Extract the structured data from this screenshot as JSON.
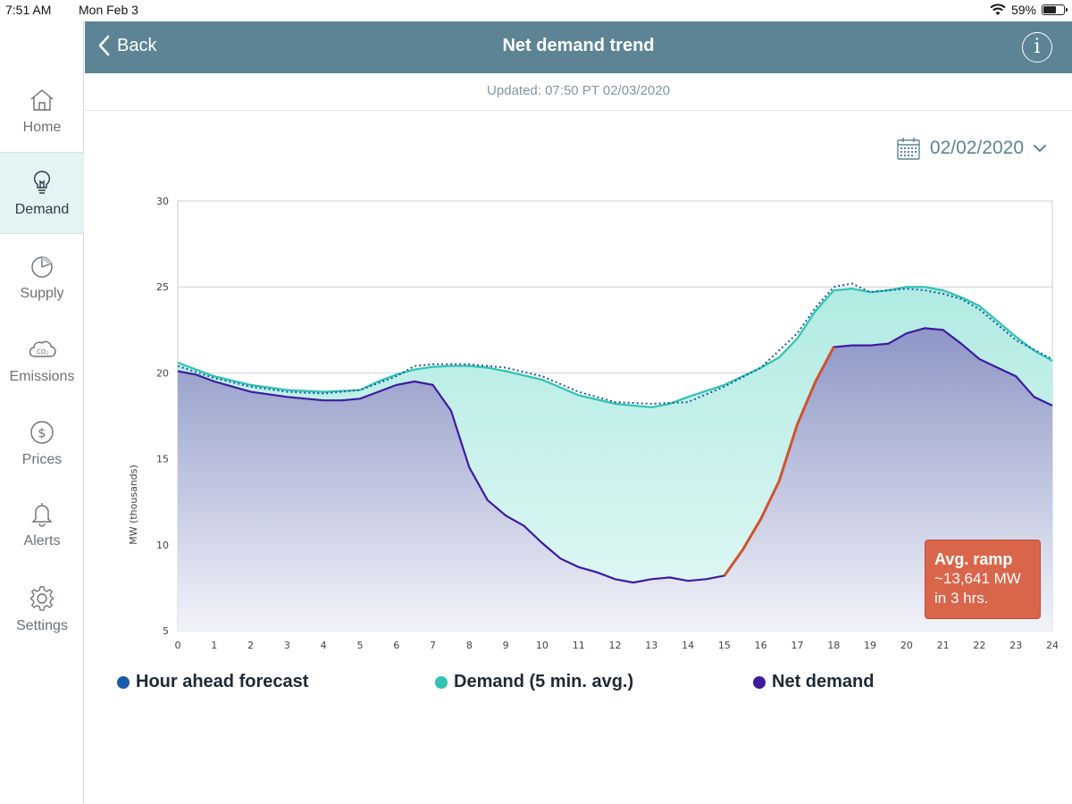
{
  "status": {
    "time": "7:51 AM",
    "date": "Mon Feb 3",
    "battery": "59%"
  },
  "sidebar": {
    "items": [
      {
        "label": "Home",
        "icon": "home-icon"
      },
      {
        "label": "Demand",
        "icon": "lightbulb-icon",
        "active": true
      },
      {
        "label": "Supply",
        "icon": "pie-chart-icon"
      },
      {
        "label": "Emissions",
        "icon": "co2-cloud-icon"
      },
      {
        "label": "Prices",
        "icon": "dollar-icon"
      },
      {
        "label": "Alerts",
        "icon": "bell-icon"
      },
      {
        "label": "Settings",
        "icon": "gear-icon"
      }
    ]
  },
  "header": {
    "back_label": "Back",
    "title": "Net demand trend",
    "info_label": "i"
  },
  "updated_text": "Updated: 07:50 PT 02/03/2020",
  "date_selector": {
    "value": "02/02/2020"
  },
  "colors": {
    "header": "#5c8494",
    "forecast": "#1a5aa8",
    "demand": "#2ec4b0",
    "net_demand": "#3e1aa0",
    "ramp": "#d0522e",
    "ramp_box": "#d9664a"
  },
  "ramp_annotation": {
    "title": "Avg. ramp",
    "value": "~13,641 MW",
    "duration": "in 3 hrs."
  },
  "chart_data": {
    "type": "area",
    "title": "Net demand trend",
    "xlabel": "",
    "ylabel": "MW (thousands)",
    "xlim": [
      0,
      24
    ],
    "ylim": [
      5,
      30
    ],
    "x_ticks": [
      0,
      1,
      2,
      3,
      4,
      5,
      6,
      7,
      8,
      9,
      10,
      11,
      12,
      13,
      14,
      15,
      16,
      17,
      18,
      19,
      20,
      21,
      22,
      23,
      24
    ],
    "y_ticks": [
      5,
      10,
      15,
      20,
      25,
      30
    ],
    "grid": true,
    "series": [
      {
        "name": "Demand (5 min. avg.)",
        "x": [
          0,
          0.5,
          1,
          2,
          3,
          4,
          5,
          5.5,
          6,
          6.5,
          7,
          7.5,
          8,
          8.5,
          9,
          10,
          11,
          12,
          12.5,
          13,
          13.5,
          14,
          15,
          16,
          16.5,
          17,
          17.5,
          18,
          18.5,
          19,
          19.5,
          20,
          20.5,
          21,
          21.5,
          22,
          22.5,
          23,
          23.5,
          24
        ],
        "values": [
          20.6,
          20.2,
          19.8,
          19.3,
          19.0,
          18.9,
          19.0,
          19.5,
          19.9,
          20.2,
          20.35,
          20.4,
          20.4,
          20.3,
          20.1,
          19.6,
          18.7,
          18.2,
          18.1,
          18.0,
          18.2,
          18.6,
          19.3,
          20.3,
          20.9,
          22.0,
          23.6,
          24.8,
          24.9,
          24.7,
          24.8,
          25.0,
          25.0,
          24.8,
          24.4,
          23.9,
          23.0,
          22.1,
          21.3,
          20.7
        ]
      },
      {
        "name": "Hour ahead forecast",
        "x": [
          0,
          1,
          2,
          3,
          4,
          5,
          6,
          6.5,
          7,
          8,
          9,
          10,
          11,
          12,
          13,
          14,
          15,
          16,
          17,
          17.5,
          18,
          18.5,
          19,
          19.5,
          20,
          20.5,
          21,
          21.5,
          22,
          23,
          24
        ],
        "values": [
          20.4,
          19.7,
          19.2,
          18.9,
          18.8,
          19.0,
          19.8,
          20.4,
          20.5,
          20.5,
          20.3,
          19.8,
          18.9,
          18.3,
          18.2,
          18.3,
          19.2,
          20.3,
          22.3,
          23.8,
          25.0,
          25.2,
          24.7,
          24.8,
          24.9,
          24.8,
          24.6,
          24.3,
          23.7,
          21.9,
          20.8
        ]
      },
      {
        "name": "Net demand",
        "x": [
          0,
          0.5,
          1,
          2,
          3,
          4,
          4.5,
          5,
          5.5,
          6,
          6.5,
          7,
          7.5,
          8,
          8.5,
          9,
          9.5,
          10,
          10.5,
          11,
          11.5,
          12,
          12.5,
          13,
          13.5,
          14,
          14.5,
          15,
          15.5,
          16,
          16.5,
          17,
          17.5,
          18,
          18.5,
          19,
          19.5,
          20,
          20.5,
          21,
          21.5,
          22,
          22.5,
          23,
          23.5,
          24
        ],
        "values": [
          20.1,
          19.9,
          19.5,
          18.9,
          18.6,
          18.4,
          18.4,
          18.5,
          18.9,
          19.3,
          19.5,
          19.3,
          17.8,
          14.5,
          12.6,
          11.7,
          11.1,
          10.1,
          9.2,
          8.7,
          8.4,
          8.0,
          7.8,
          8.0,
          8.1,
          7.9,
          8.0,
          8.2,
          9.7,
          11.5,
          13.7,
          17.0,
          19.5,
          21.5,
          21.6,
          21.6,
          21.7,
          22.3,
          22.6,
          22.5,
          21.7,
          20.8,
          20.3,
          19.8,
          18.6,
          18.1
        ]
      }
    ],
    "ramp": {
      "x_start": 15,
      "x_end": 18,
      "label": "Avg. ramp ~13,641 MW in 3 hrs."
    },
    "legend": [
      "Hour ahead forecast",
      "Demand (5 min. avg.)",
      "Net demand"
    ],
    "legend_position": "bottom"
  }
}
